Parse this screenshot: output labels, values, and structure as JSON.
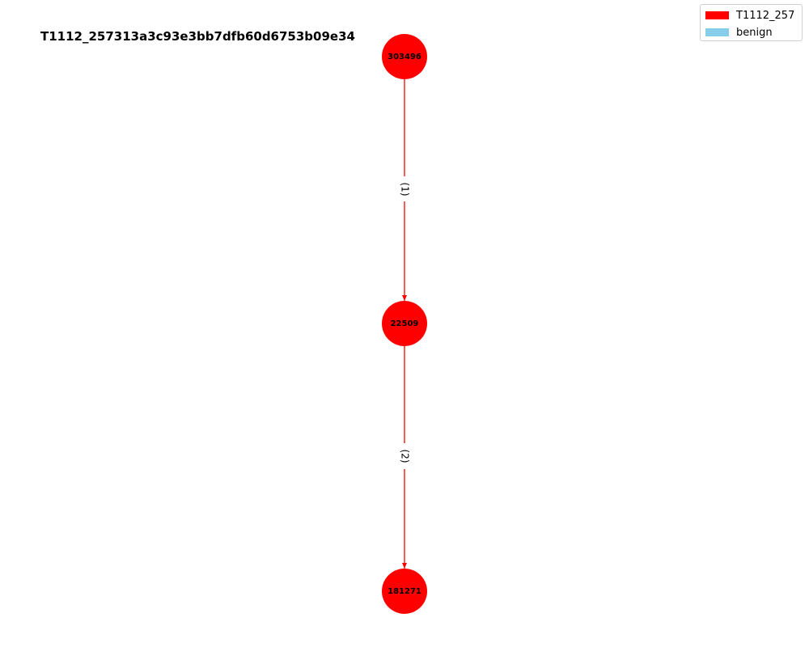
{
  "title": "T1112_257313a3c93e3bb7dfb60d6753b09e34",
  "legend": {
    "items": [
      {
        "label": "T1112_257",
        "color": "#ff0000"
      },
      {
        "label": "benign",
        "color": "#87ceeb"
      }
    ]
  },
  "graph": {
    "nodes": [
      {
        "id": "303496",
        "label": "303496",
        "color": "#ff0000"
      },
      {
        "id": "22509",
        "label": "22509",
        "color": "#ff0000"
      },
      {
        "id": "181271",
        "label": "181271",
        "color": "#ff0000"
      }
    ],
    "edges": [
      {
        "from": "303496",
        "to": "22509",
        "label": "(1)",
        "color": "#ff0000"
      },
      {
        "from": "22509",
        "to": "181271",
        "label": "(2)",
        "color": "#ff0000"
      }
    ]
  }
}
